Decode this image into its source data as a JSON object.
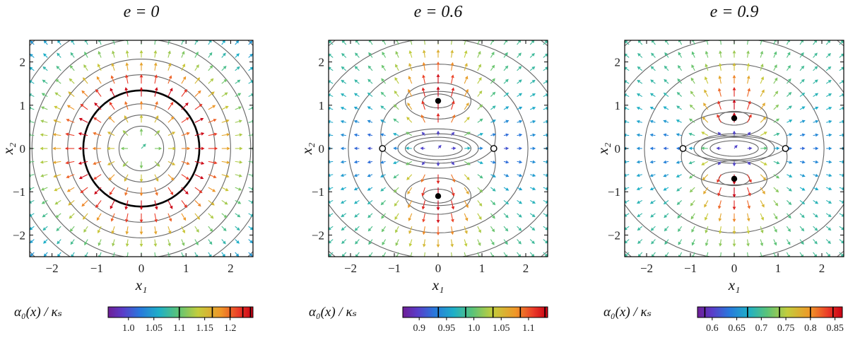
{
  "chart_data": [
    {
      "type": "vector-field",
      "title": "e = 0",
      "e": 0,
      "xlabel": "x₁",
      "ylabel": "x₂",
      "xlim": [
        -2.5,
        2.5
      ],
      "ylim": [
        -2.5,
        2.5
      ],
      "xticks": [
        -2,
        -1,
        0,
        1,
        2
      ],
      "yticks": [
        -2,
        -1,
        0,
        1,
        2
      ],
      "xtick_labels": [
        "−2",
        "−1",
        "0",
        "1",
        "2"
      ],
      "ytick_labels": [
        "−2",
        "−1",
        "0",
        "1",
        "2"
      ],
      "critical_radius": 1.3,
      "fixed_points_filled": [],
      "fixed_points_open": [],
      "colorbar": {
        "label": "α₀(x) / κₛ",
        "range": [
          0.96,
          1.245
        ],
        "ticks": [
          1.0,
          1.05,
          1.1,
          1.15,
          1.2
        ],
        "tick_labels": [
          "1.0",
          "1.05",
          "1.1",
          "1.15",
          "1.2"
        ],
        "contour_marks": [
          1.1,
          1.165,
          1.2,
          1.225,
          1.24
        ]
      }
    },
    {
      "type": "vector-field",
      "title": "e = 0.6",
      "e": 0.6,
      "xlabel": "x₁",
      "ylabel": "x₂",
      "xlim": [
        -2.5,
        2.5
      ],
      "ylim": [
        -2.5,
        2.5
      ],
      "xticks": [
        -2,
        -1,
        0,
        1,
        2
      ],
      "yticks": [
        -2,
        -1,
        0,
        1,
        2
      ],
      "xtick_labels": [
        "−2",
        "−1",
        "0",
        "1",
        "2"
      ],
      "ytick_labels": [
        "−2",
        "−1",
        "0",
        "1",
        "2"
      ],
      "fixed_points_filled": [
        [
          0,
          1.1
        ],
        [
          0,
          -1.1
        ]
      ],
      "fixed_points_open": [
        [
          -1.27,
          0
        ],
        [
          1.27,
          0
        ]
      ],
      "colorbar": {
        "label": "α₀(x) / κₛ",
        "range": [
          0.87,
          1.135
        ],
        "ticks": [
          0.9,
          0.95,
          1.0,
          1.05,
          1.1
        ],
        "tick_labels": [
          "0.9",
          "0.95",
          "1.0",
          "1.05",
          "1.1"
        ],
        "contour_marks": [
          0.935,
          0.985,
          1.035,
          1.085,
          1.13
        ]
      }
    },
    {
      "type": "vector-field",
      "title": "e = 0.9",
      "e": 0.9,
      "xlabel": "x₁",
      "ylabel": "x₂",
      "xlim": [
        -2.5,
        2.5
      ],
      "ylim": [
        -2.5,
        2.5
      ],
      "xticks": [
        -2,
        -1,
        0,
        1,
        2
      ],
      "yticks": [
        -2,
        -1,
        0,
        1,
        2
      ],
      "xtick_labels": [
        "−2",
        "−1",
        "0",
        "1",
        "2"
      ],
      "ytick_labels": [
        "−2",
        "−1",
        "0",
        "1",
        "2"
      ],
      "fixed_points_filled": [
        [
          0,
          0.7
        ],
        [
          0,
          -0.7
        ]
      ],
      "fixed_points_open": [
        [
          -1.17,
          0
        ],
        [
          1.17,
          0
        ]
      ],
      "colorbar": {
        "label": "α₀(x) / κₛ",
        "range": [
          0.57,
          0.865
        ],
        "ticks": [
          0.6,
          0.65,
          0.7,
          0.75,
          0.8,
          0.85
        ],
        "tick_labels": [
          "0.6",
          "0.65",
          "0.7",
          "0.75",
          "0.8",
          "0.85"
        ],
        "contour_marks": [
          0.585,
          0.672,
          0.737,
          0.8,
          0.846
        ]
      }
    }
  ]
}
